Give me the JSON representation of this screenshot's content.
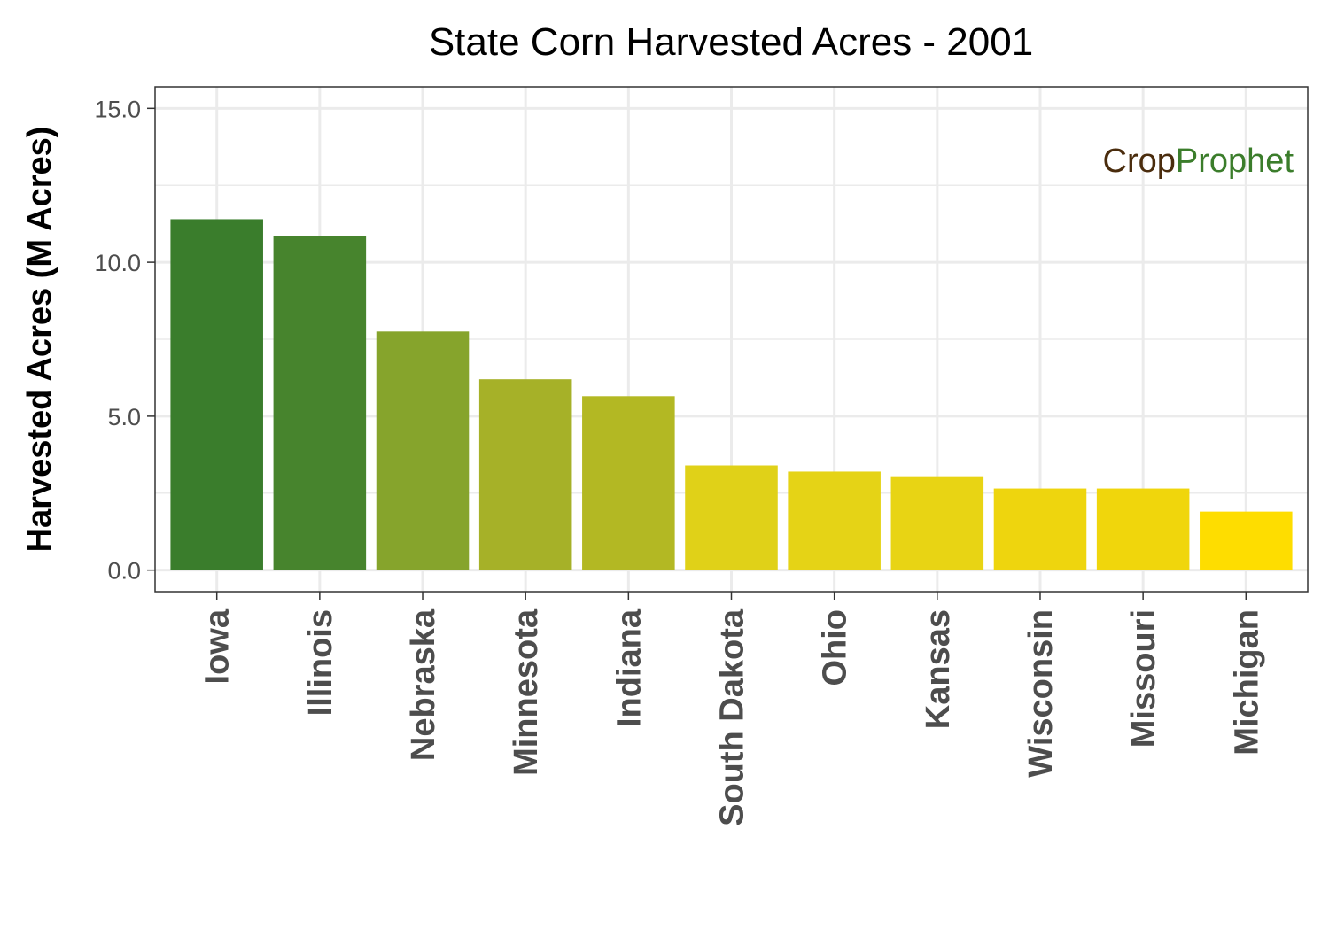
{
  "chart_data": {
    "type": "bar",
    "title": "State Corn Harvested Acres - 2001",
    "xlabel": "",
    "ylabel": "Harvested Acres (M Acres)",
    "ylim": [
      -0.7,
      15.7
    ],
    "yticks": [
      0.0,
      5.0,
      10.0,
      15.0
    ],
    "ytick_labels": [
      "0.0",
      "5.0",
      "10.0",
      "15.0"
    ],
    "grid": true,
    "legend": "none",
    "categories": [
      "Iowa",
      "Illinois",
      "Nebraska",
      "Minnesota",
      "Indiana",
      "South Dakota",
      "Ohio",
      "Kansas",
      "Wisconsin",
      "Missouri",
      "Michigan"
    ],
    "values": [
      11.4,
      10.85,
      7.75,
      6.2,
      5.65,
      3.4,
      3.2,
      3.05,
      2.65,
      2.65,
      1.9
    ],
    "colors": [
      "#3a7d2c",
      "#47842d",
      "#86a42c",
      "#a6b128",
      "#b3b823",
      "#e0d118",
      "#e5d316",
      "#e8d414",
      "#eed50e",
      "#f0d60c",
      "#fedd00"
    ]
  },
  "watermark": {
    "part1": "Cr",
    "o": "o",
    "part2": "p",
    "part3": "Prophet",
    "color_dark": "#4a2c0d",
    "color_green": "#3b7d2b"
  }
}
